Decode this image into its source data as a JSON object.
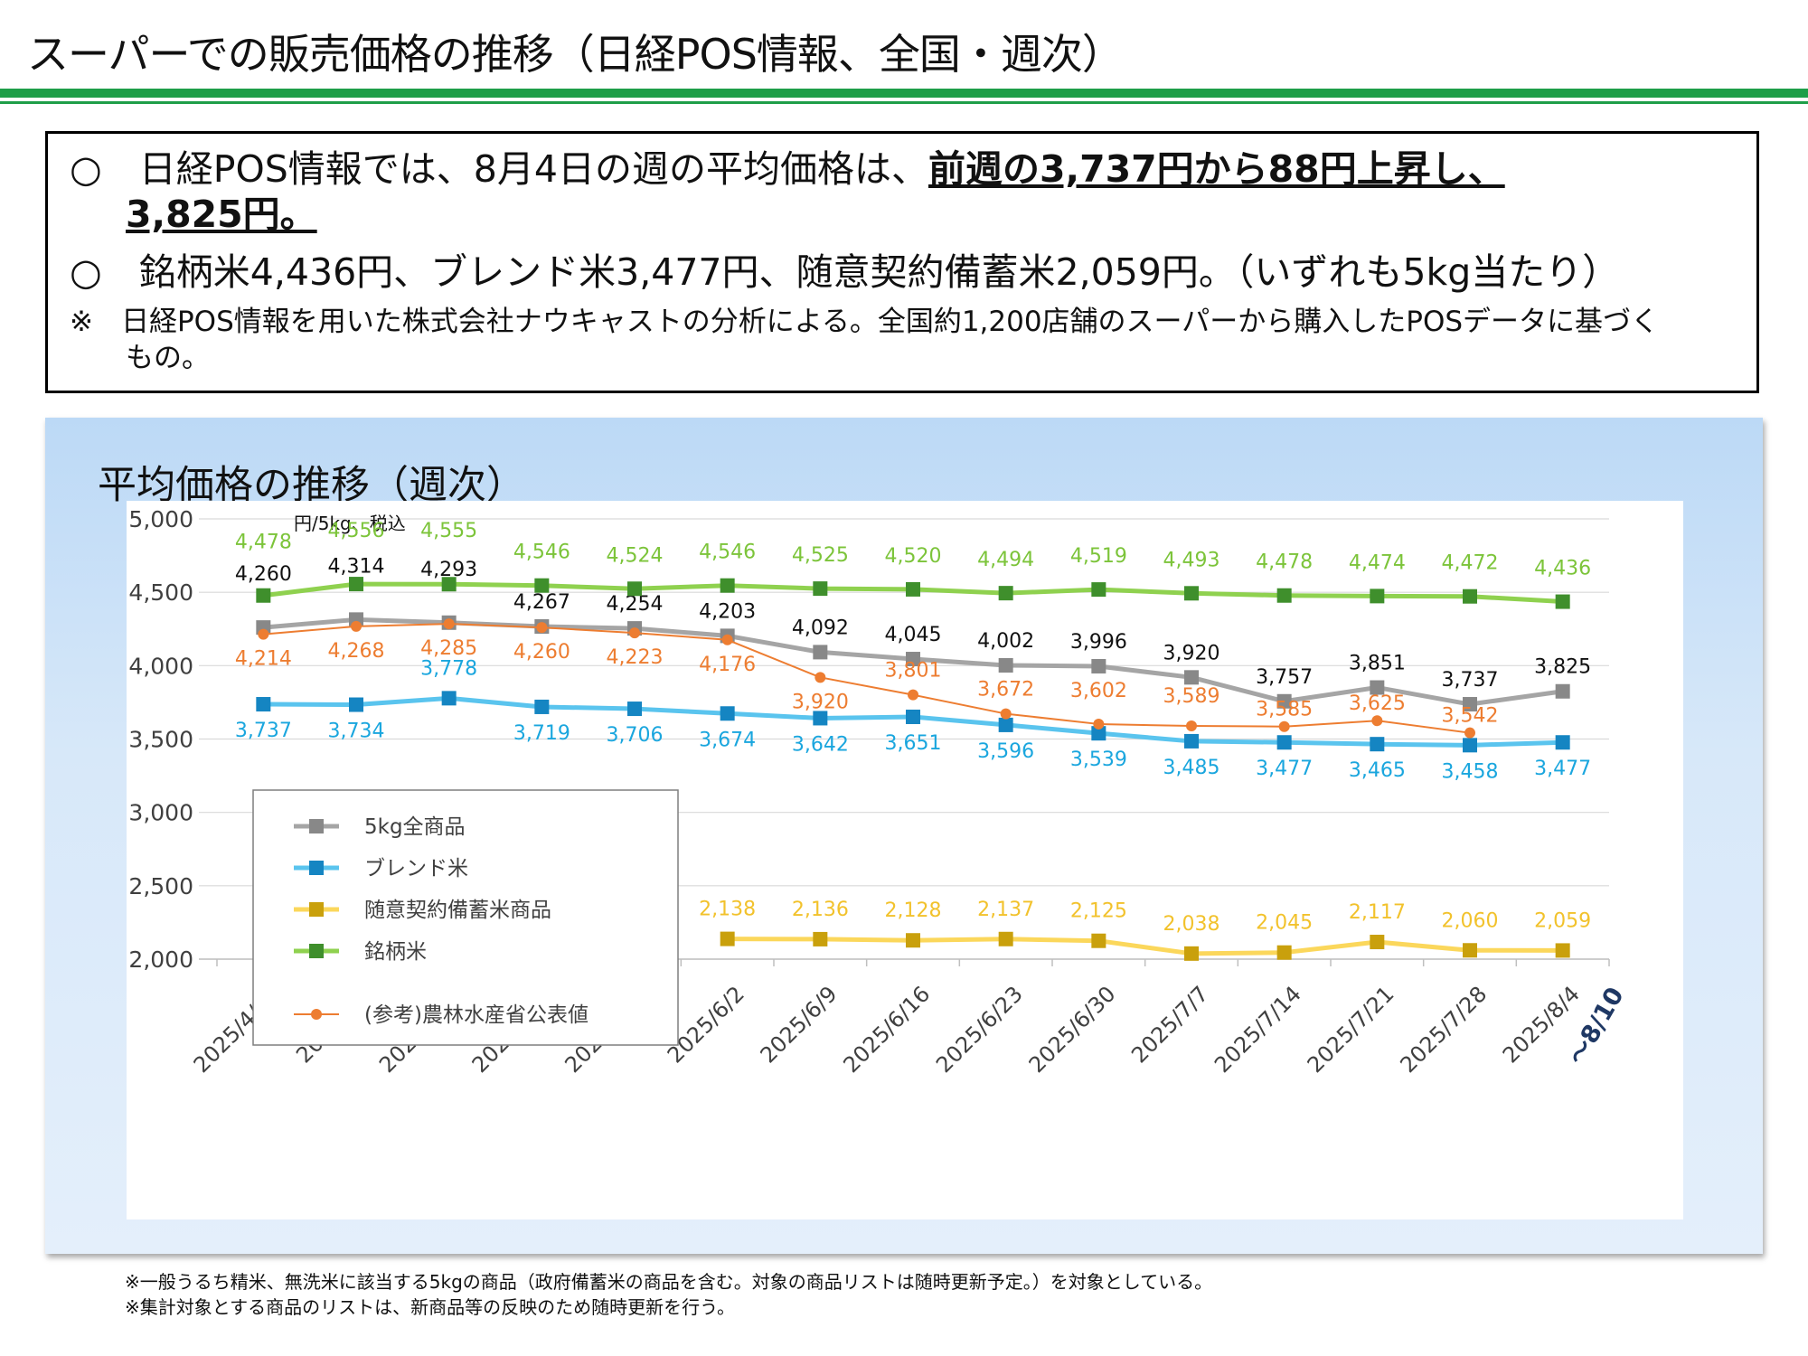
{
  "page": {
    "title": "スーパーでの販売価格の推移（日経POS情報、全国・週次）",
    "summary": {
      "line1_prefix": "○　日経POS情報では、8月4日の週の平均価格は、",
      "line1_emph": "前週の3,737円から88円上昇し、",
      "line2": "3,825円。",
      "line3": "○　銘柄米4,436円、ブレンド米3,477円、随意契約備蓄米2,059円。（いずれも5kg当たり）",
      "note1": "※　日経POS情報を用いた株式会社ナウキャストの分析による。全国約1,200店舗のスーパーから購入したPOSデータに基づく",
      "note2": "もの。"
    },
    "panel_title": "平均価格の推移（週次）",
    "footnotes": [
      "※一般うるち精米、無洗米に該当する5kgの商品（政府備蓄米の商品を含む。対象の商品リストは随時更新予定。）を対象としている。",
      "※集計対象とする商品のリストは、新商品等の反映のため随時更新を行う。"
    ]
  },
  "chart_data": {
    "type": "line",
    "unit_label": "円/5kg、税込",
    "categories": [
      "2025/4/28",
      "2025/5/5",
      "2025/5/12",
      "2025/5/19",
      "2025/5/26",
      "2025/6/2",
      "2025/6/9",
      "2025/6/16",
      "2025/6/23",
      "2025/6/30",
      "2025/7/7",
      "2025/7/14",
      "2025/7/21",
      "2025/7/28",
      "2025/8/4"
    ],
    "last_category_suffix": "～8/10",
    "ylim": [
      2000,
      5000
    ],
    "yticks": [
      2000,
      2500,
      3000,
      3500,
      4000,
      4500,
      5000
    ],
    "ytick_labels": [
      "2,000",
      "2,500",
      "3,000",
      "3,500",
      "4,000",
      "4,500",
      "5,000"
    ],
    "grid": true,
    "legend_position": "left-middle",
    "series": [
      {
        "name": "5kg全商品",
        "color": "#a5a5a5",
        "label_color": "#111111",
        "marker": "square",
        "values": [
          4260,
          4314,
          4293,
          4267,
          4254,
          4203,
          4092,
          4045,
          4002,
          3996,
          3920,
          3757,
          3851,
          3737,
          3825
        ],
        "labels": [
          "4,260",
          "4,314",
          "4,293",
          "4,267",
          "4,254",
          "4,203",
          "4,092",
          "4,045",
          "4,002",
          "3,996",
          "3,920",
          "3,757",
          "3,851",
          "3,737",
          "3,825"
        ]
      },
      {
        "name": "ブレンド米",
        "color": "#5ac4ee",
        "label_color": "#1aa6de",
        "marker": "square",
        "marker_color": "#1585c2",
        "values": [
          3737,
          3734,
          3778,
          3719,
          3706,
          3674,
          3642,
          3651,
          3596,
          3539,
          3485,
          3477,
          3465,
          3458,
          3477
        ],
        "labels": [
          "3,737",
          "3,734",
          "3,778",
          "3,719",
          "3,706",
          "3,674",
          "3,642",
          "3,651",
          "3,596",
          "3,539",
          "3,485",
          "3,477",
          "3,465",
          "3,458",
          "3,477"
        ]
      },
      {
        "name": "随意契約備蓄米商品",
        "color": "#fbd75b",
        "label_color": "#f2c22c",
        "marker": "square",
        "marker_color": "#c9a00c",
        "values": [
          null,
          null,
          null,
          null,
          null,
          2138,
          2136,
          2128,
          2137,
          2125,
          2038,
          2045,
          2117,
          2060,
          2059
        ],
        "labels": [
          "",
          "",
          "",
          "",
          "",
          "2,138",
          "2,136",
          "2,128",
          "2,137",
          "2,125",
          "2,038",
          "2,045",
          "2,117",
          "2,060",
          "2,059"
        ]
      },
      {
        "name": "銘柄米",
        "color": "#8fd14f",
        "label_color": "#7cc43a",
        "marker": "square",
        "marker_color": "#3f8f2c",
        "values": [
          4478,
          4556,
          4555,
          4546,
          4524,
          4546,
          4525,
          4520,
          4494,
          4519,
          4493,
          4478,
          4474,
          4472,
          4436
        ],
        "labels": [
          "4,478",
          "4,556",
          "4,555",
          "4,546",
          "4,524",
          "4,546",
          "4,525",
          "4,520",
          "4,494",
          "4,519",
          "4,493",
          "4,478",
          "4,474",
          "4,472",
          "4,436"
        ]
      },
      {
        "name": "(参考)農林水産省公表値",
        "color": "#ed7d31",
        "label_color": "#ed7d31",
        "marker": "circle",
        "values": [
          4214,
          4268,
          4285,
          4260,
          4223,
          4176,
          3920,
          3801,
          3672,
          3602,
          3589,
          3585,
          3625,
          3542,
          null
        ],
        "labels": [
          "4,214",
          "4,268",
          "4,285",
          "4,260",
          "4,223",
          "4,176",
          "3,920",
          "3,801",
          "3,672",
          "3,602",
          "3,589",
          "3,585",
          "3,625",
          "3,542",
          ""
        ]
      }
    ]
  }
}
